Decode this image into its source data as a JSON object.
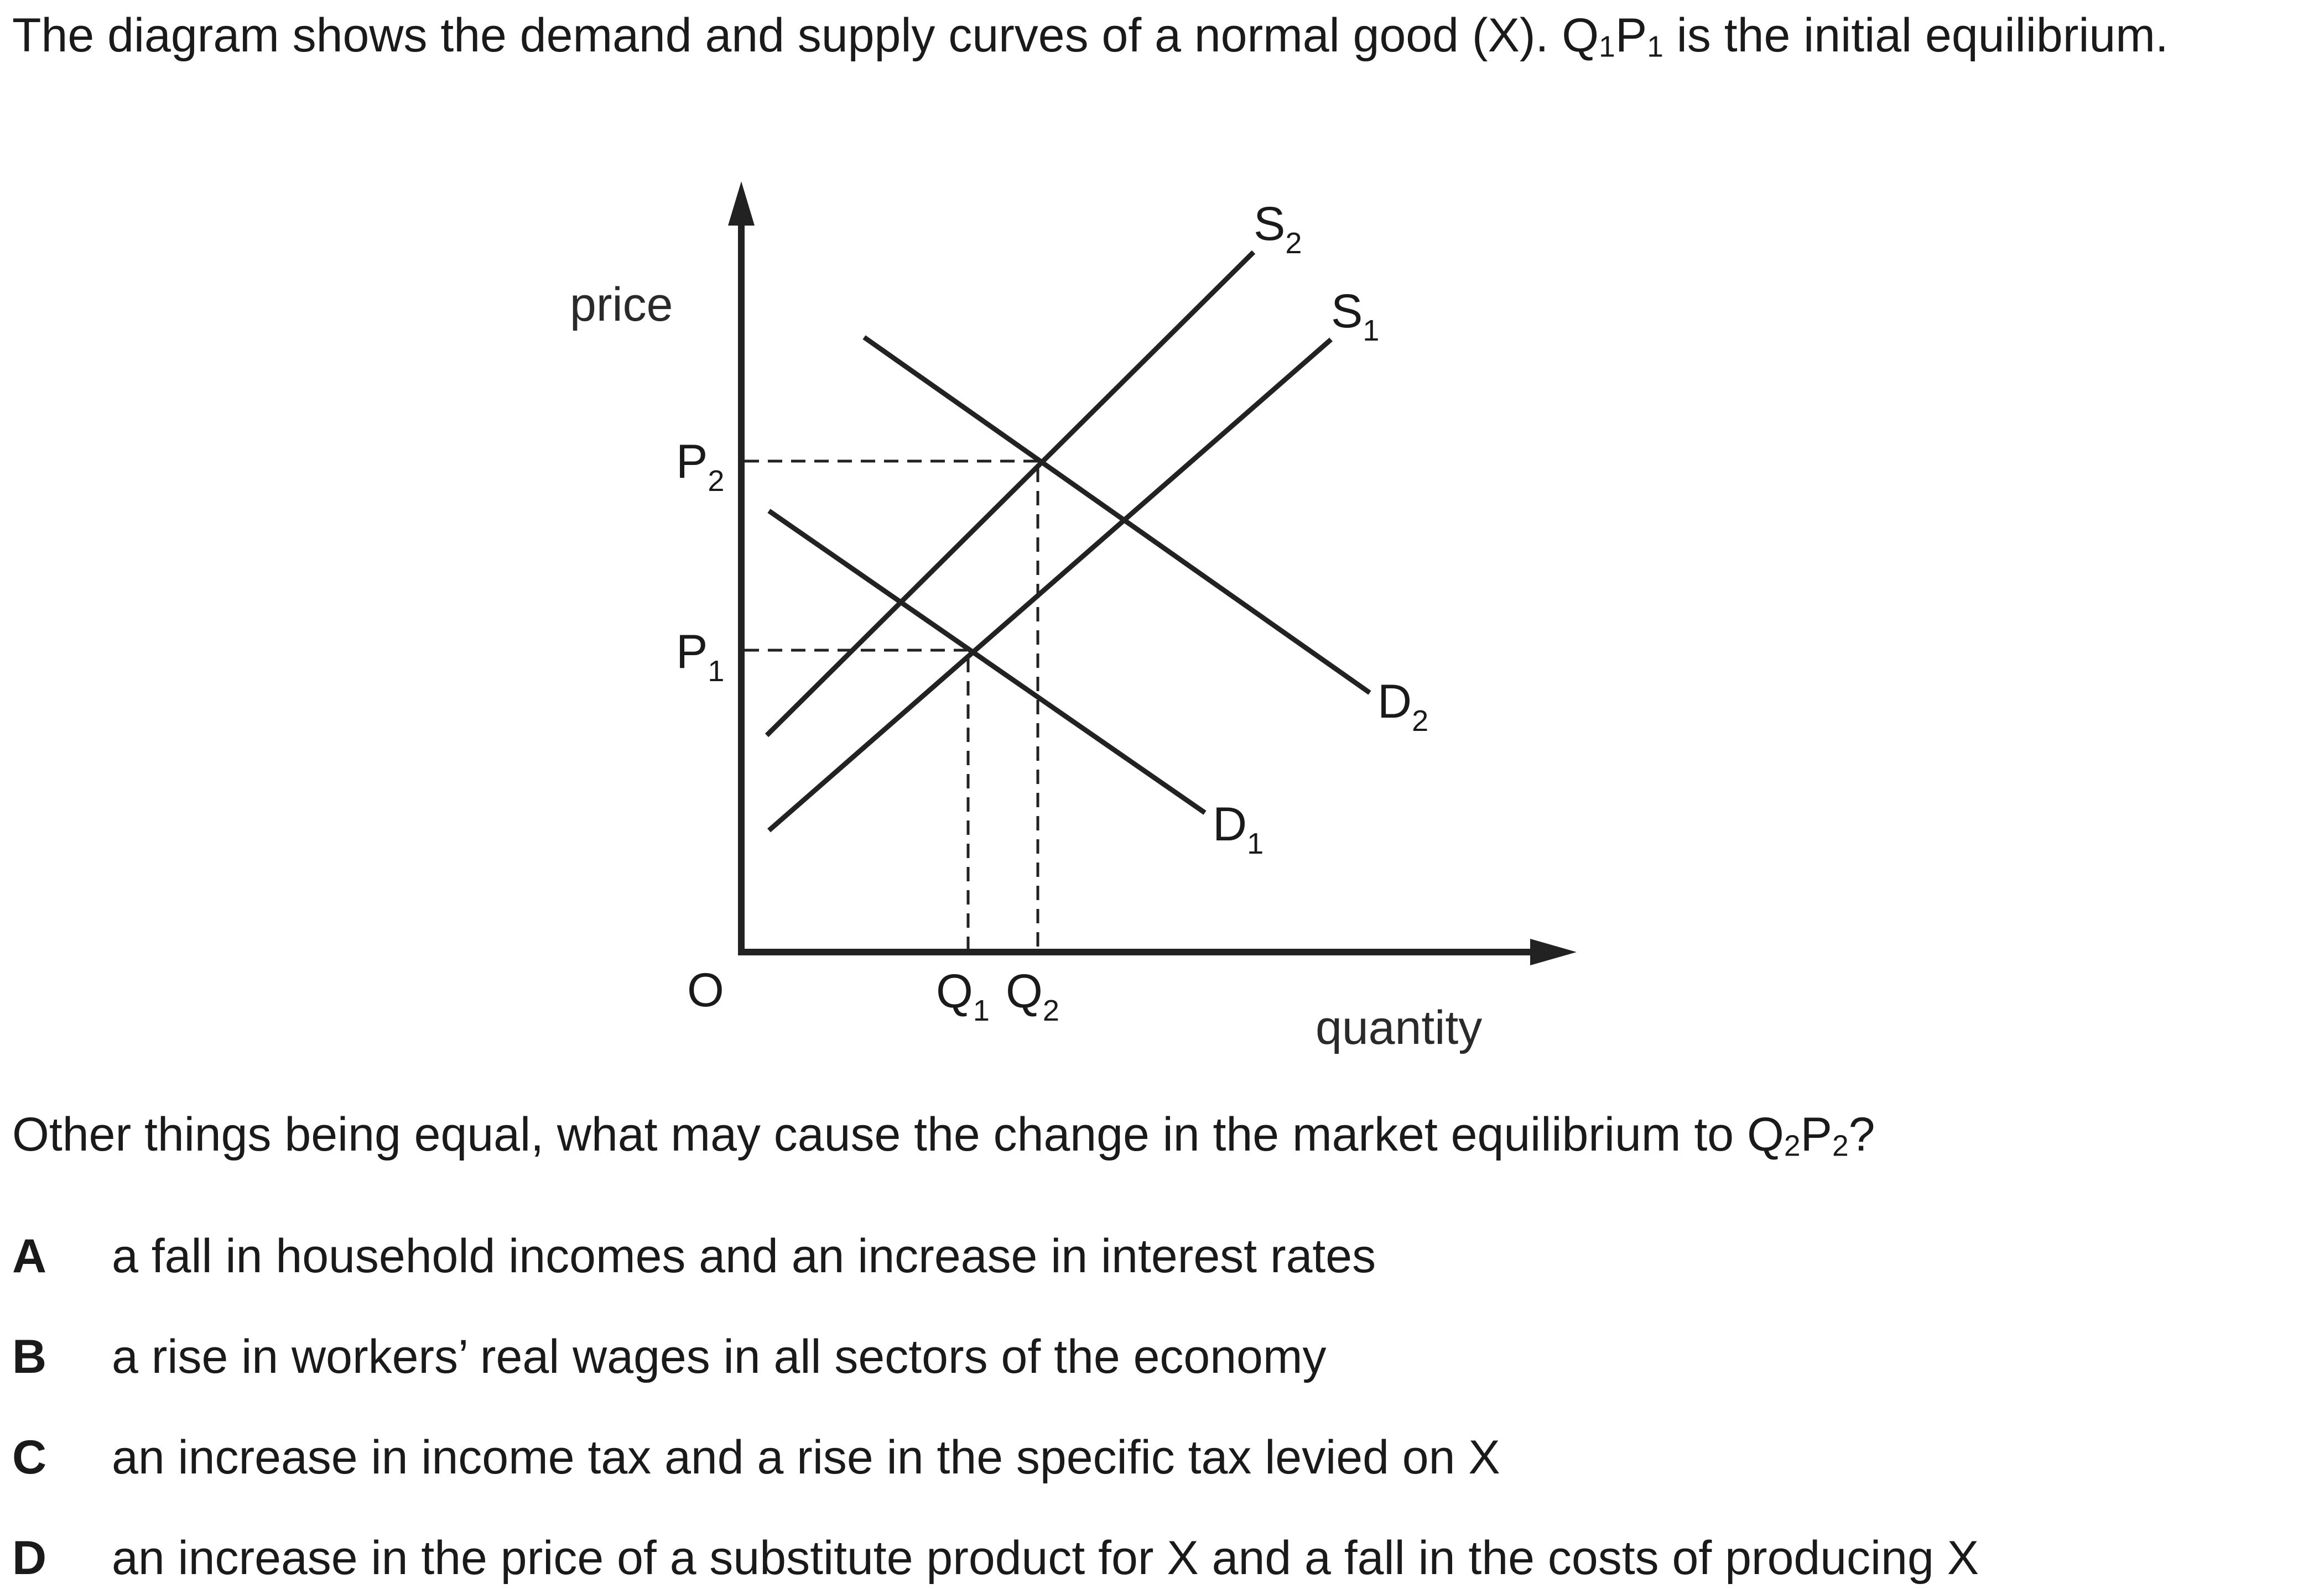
{
  "intro": {
    "part1": "The diagram shows the demand and supply curves of a normal good (X). Q",
    "part2": "P",
    "part3": " is the initial equilibrium.",
    "sub1": "1",
    "sub2": "1"
  },
  "diagram": {
    "y_axis_label": "price",
    "x_axis_label": "quantity",
    "origin_label": "O",
    "p2": {
      "letter": "P",
      "sub": "2"
    },
    "p1": {
      "letter": "P",
      "sub": "1"
    },
    "q1": {
      "letter": "Q",
      "sub": "1"
    },
    "q2": {
      "letter": "Q",
      "sub": "2"
    },
    "s1": {
      "letter": "S",
      "sub": "1"
    },
    "s2": {
      "letter": "S",
      "sub": "2"
    },
    "d1": {
      "letter": "D",
      "sub": "1"
    },
    "d2": {
      "letter": "D",
      "sub": "2"
    }
  },
  "question": {
    "part1": "Other things being equal, what may cause the change in the market equilibrium to Q",
    "part2": "P",
    "part3": "?",
    "sub1": "2",
    "sub2": "2"
  },
  "options": [
    {
      "letter": "A",
      "text": "a fall in household incomes and an increase in interest rates"
    },
    {
      "letter": "B",
      "text": "a rise in workers’ real wages in all sectors of the economy"
    },
    {
      "letter": "C",
      "text": "an increase in income tax and a rise in the specific tax levied on X"
    },
    {
      "letter": "D",
      "text": "an increase in the price of a substitute product for X and a fall in the costs of producing X"
    }
  ]
}
